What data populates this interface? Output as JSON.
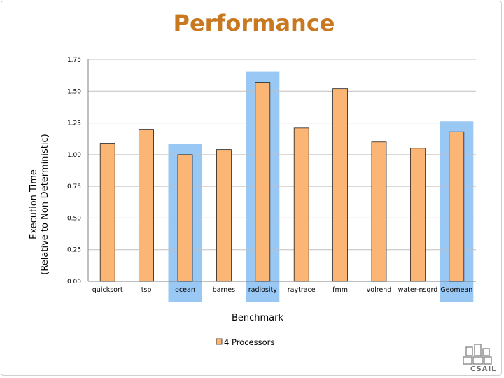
{
  "slide": {
    "title": "Performance"
  },
  "logo": {
    "text": "CSAIL"
  },
  "colors": {
    "bar": "#fbb574",
    "bar_stroke": "#222222",
    "highlight": "#99c8f5",
    "grid": "#c0c0c0",
    "title": "#c8781e"
  },
  "chart_data": {
    "type": "bar",
    "title": "",
    "xlabel": "Benchmark",
    "ylabel_lines": [
      "Execution Time",
      "(Relative to Non-Deterministic)"
    ],
    "ylim": [
      0,
      1.75
    ],
    "yticks": [
      0,
      0.25,
      0.5,
      0.75,
      1.0,
      1.25,
      1.5,
      1.75
    ],
    "ytick_labels": [
      "0.00",
      "0.25",
      "0.50",
      "0.75",
      "1.00",
      "1.25",
      "1.50",
      "1.75"
    ],
    "grid": true,
    "categories": [
      "quicksort",
      "tsp",
      "ocean",
      "barnes",
      "radiosity",
      "raytrace",
      "fmm",
      "volrend",
      "water-nsqrd",
      "Geomean"
    ],
    "highlighted_categories": [
      "ocean",
      "radiosity",
      "Geomean"
    ],
    "series": [
      {
        "name": "4 Processors",
        "values": [
          1.09,
          1.2,
          1.0,
          1.04,
          1.57,
          1.21,
          1.52,
          1.1,
          1.05,
          1.18
        ]
      }
    ],
    "legend_position": "bottom"
  }
}
